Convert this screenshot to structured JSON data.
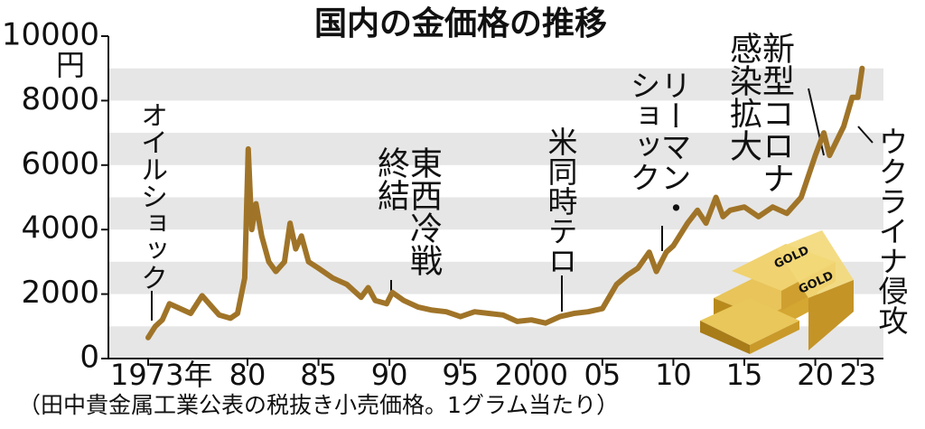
{
  "chart_data": {
    "type": "line",
    "title": "国内の金価格の推移",
    "y_unit": "円",
    "footnote": "（田中貴金属工業公表の税抜き小売価格。1グラム当たり）",
    "xlim": [
      1970.2,
      2024.8
    ],
    "ylim": [
      0,
      10000
    ],
    "yticks": [
      0,
      2000,
      4000,
      6000,
      8000,
      10000
    ],
    "xticks": [
      {
        "value": 1973,
        "label": "1973年"
      },
      {
        "value": 1980,
        "label": "80"
      },
      {
        "value": 1985,
        "label": "85"
      },
      {
        "value": 1990,
        "label": "90"
      },
      {
        "value": 1995,
        "label": "95"
      },
      2000,
      {
        "value": 2005,
        "label": "05"
      },
      {
        "value": 2010,
        "label": "10"
      },
      {
        "value": 2015,
        "label": "15"
      },
      {
        "value": 2020,
        "label": "20"
      },
      {
        "value": 2023,
        "label": "23"
      }
    ],
    "grid": "bands",
    "series": [
      {
        "color": "#a07428",
        "x": [
          1973.0,
          1973.5,
          1974,
          1974.5,
          1975,
          1976,
          1976.8,
          1977.5,
          1978,
          1978.8,
          1979.3,
          1979.8,
          1980.05,
          1980.3,
          1980.6,
          1981,
          1981.5,
          1982,
          1982.6,
          1983,
          1983.4,
          1983.8,
          1984.3,
          1985,
          1986,
          1987,
          1988,
          1988.5,
          1989,
          1989.8,
          1990.2,
          1991,
          1992,
          1993,
          1994,
          1995,
          1996,
          1997,
          1998,
          1999,
          2000,
          2001,
          2002,
          2003,
          2004,
          2005,
          2006,
          2006.8,
          2007.5,
          2008.3,
          2008.8,
          2009.5,
          2010,
          2011,
          2011.7,
          2012.3,
          2013,
          2013.5,
          2014,
          2015,
          2016,
          2017,
          2018,
          2019,
          2020,
          2020.6,
          2021,
          2022,
          2022.6,
          2023,
          2023.3
        ],
        "values": [
          650,
          1000,
          1200,
          1700,
          1600,
          1400,
          1950,
          1600,
          1350,
          1250,
          1400,
          2500,
          6500,
          4000,
          4800,
          3800,
          3000,
          2700,
          3000,
          4200,
          3400,
          3800,
          3000,
          2800,
          2500,
          2300,
          1900,
          2200,
          1800,
          1700,
          2050,
          1800,
          1600,
          1500,
          1450,
          1300,
          1450,
          1400,
          1350,
          1150,
          1200,
          1100,
          1300,
          1400,
          1450,
          1550,
          2300,
          2600,
          2800,
          3300,
          2700,
          3300,
          3500,
          4200,
          4600,
          4200,
          5000,
          4400,
          4600,
          4700,
          4400,
          4700,
          4500,
          5000,
          6300,
          7000,
          6300,
          7200,
          8100,
          8100,
          9000
        ]
      }
    ],
    "annotations": [
      {
        "label": "オイルショック"
      },
      {
        "label": "東西冷戦終結"
      },
      {
        "label": "米同時テロ"
      },
      {
        "label": "リーマン・ショック"
      },
      {
        "label": "新型コロナ感染拡大"
      },
      {
        "label": "ウクライナ侵攻"
      }
    ]
  }
}
